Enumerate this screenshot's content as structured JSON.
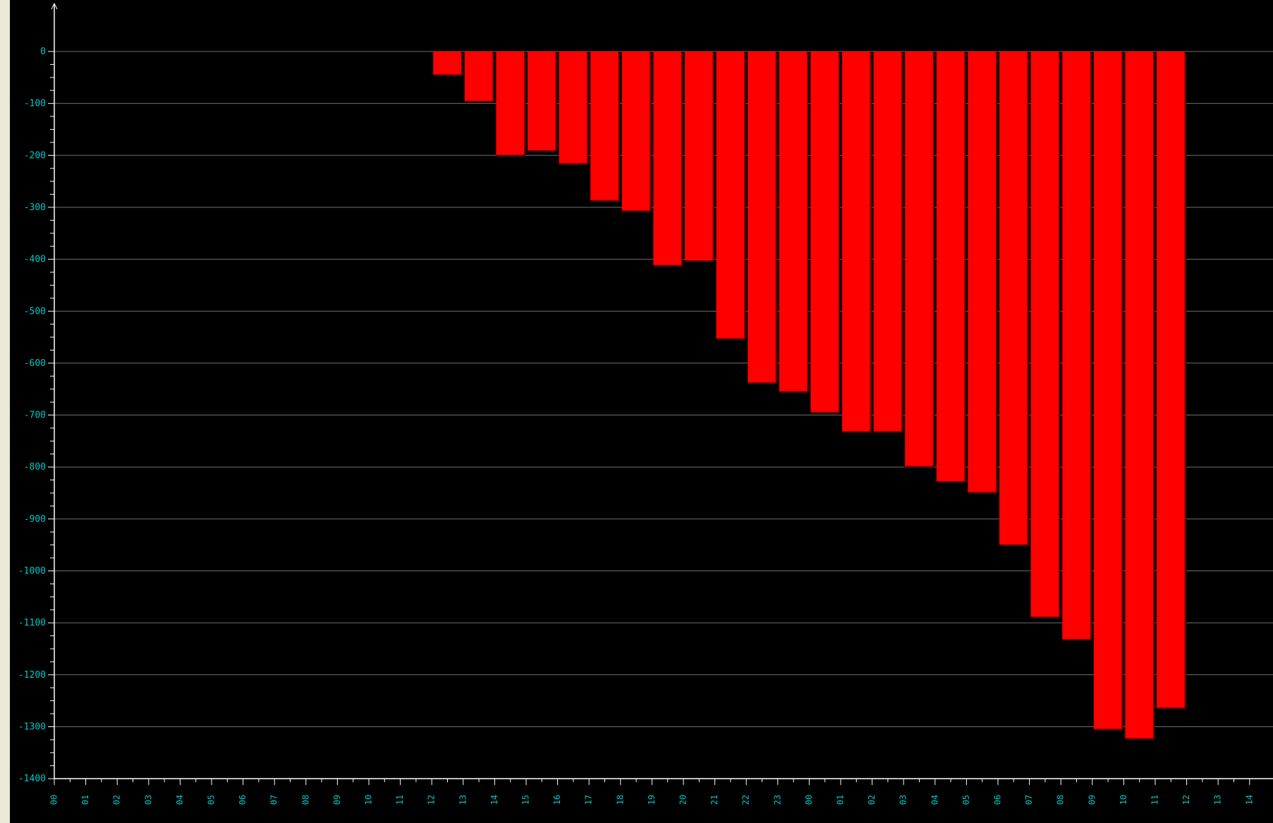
{
  "chart_data": {
    "type": "bar",
    "title": "",
    "xlabel": "",
    "ylabel": "",
    "ylim": [
      -1400,
      0
    ],
    "yticks": [
      0,
      -100,
      -200,
      -300,
      -400,
      -500,
      -600,
      -700,
      -800,
      -900,
      -1000,
      -1100,
      -1200,
      -1300,
      -1400
    ],
    "grid": true,
    "x_tick_labels": [
      "00",
      "01",
      "02",
      "03",
      "04",
      "05",
      "06",
      "07",
      "08",
      "09",
      "10",
      "11",
      "12",
      "13",
      "14",
      "15",
      "16",
      "17",
      "18",
      "19",
      "20",
      "21",
      "22",
      "23",
      "00",
      "01",
      "02",
      "03",
      "04",
      "05",
      "06",
      "07",
      "08",
      "09",
      "10",
      "11",
      "12",
      "13",
      "14"
    ],
    "bars": [
      {
        "start": 12,
        "value": -44
      },
      {
        "start": 13,
        "value": -95
      },
      {
        "start": 14,
        "value": -199
      },
      {
        "start": 15,
        "value": -190
      },
      {
        "start": 16,
        "value": -215
      },
      {
        "start": 17,
        "value": -286
      },
      {
        "start": 18,
        "value": -306
      },
      {
        "start": 19,
        "value": -411
      },
      {
        "start": 20,
        "value": -402
      },
      {
        "start": 21,
        "value": -552
      },
      {
        "start": 22,
        "value": -637
      },
      {
        "start": 23,
        "value": -654
      },
      {
        "start": 24,
        "value": -694
      },
      {
        "start": 25,
        "value": -731
      },
      {
        "start": 26,
        "value": -731
      },
      {
        "start": 27,
        "value": -798
      },
      {
        "start": 28,
        "value": -827
      },
      {
        "start": 29,
        "value": -848
      },
      {
        "start": 30,
        "value": -949
      },
      {
        "start": 31,
        "value": -1088
      },
      {
        "start": 32,
        "value": -1131
      },
      {
        "start": 33,
        "value": -1304
      },
      {
        "start": 34,
        "value": -1322
      },
      {
        "start": 35,
        "value": -1263
      }
    ]
  },
  "colors": {
    "background": "#000000",
    "bar": "#ff0000",
    "bar_shadow": "#6a0000",
    "grid": "#6f6f6f",
    "axis": "#ffffff",
    "tick_label": "#00c8c8",
    "frame": "#ece9d8"
  }
}
